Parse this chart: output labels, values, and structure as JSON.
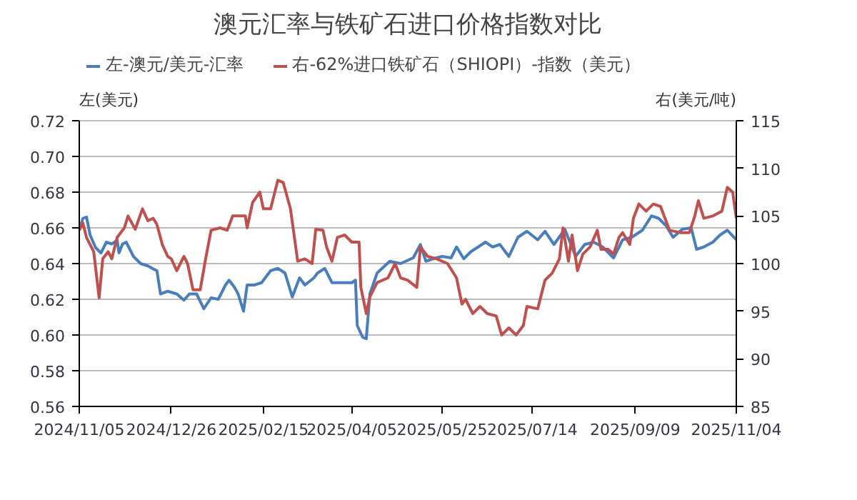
{
  "chart_data": {
    "type": "line",
    "title": "澳元汇率与铁矿石进口价格指数对比",
    "ylabel": "左(美元)",
    "y2label": "右(美元/吨)",
    "legend": "top left",
    "grid": "y",
    "marker": "none",
    "line_style": "solid",
    "xlim": [
      "2024-11-05",
      "2025-11-04"
    ],
    "xticks": [
      {
        "value": "2024-11-05",
        "label": "2024/11/05"
      },
      {
        "value": "2024-12-26",
        "label": "2024/12/26"
      },
      {
        "value": "2025-02-15",
        "label": "2025/02/15"
      },
      {
        "value": "2025-04-05",
        "label": "2025/04/05"
      },
      {
        "value": "2025-05-25",
        "label": "2025/05/25"
      },
      {
        "value": "2025-07-14",
        "label": "2025/07/14"
      },
      {
        "value": "2025-09-09",
        "label": "2025/09/09"
      },
      {
        "value": "2025-11-04",
        "label": "2025/11/04"
      }
    ],
    "ylim": [
      0.56,
      0.72
    ],
    "yticks": [
      {
        "value": 0.56,
        "label": "0.56"
      },
      {
        "value": 0.58,
        "label": "0.58"
      },
      {
        "value": 0.6,
        "label": "0.60"
      },
      {
        "value": 0.62,
        "label": "0.62"
      },
      {
        "value": 0.64,
        "label": "0.64"
      },
      {
        "value": 0.66,
        "label": "0.66"
      },
      {
        "value": 0.68,
        "label": "0.68"
      },
      {
        "value": 0.7,
        "label": "0.70"
      },
      {
        "value": 0.72,
        "label": "0.72"
      }
    ],
    "y2lim": [
      85,
      115
    ],
    "y2ticks": [
      85,
      90,
      95,
      100,
      105,
      110,
      115
    ],
    "series": [
      {
        "name": "左-澳元/美元-汇率",
        "color": "#4a7ebb",
        "x": [
          "2024-11-05",
          "2024-11-07",
          "2024-11-09",
          "2024-11-11",
          "2024-11-14",
          "2024-11-17",
          "2024-11-20",
          "2024-11-23",
          "2024-11-26",
          "2024-11-27",
          "2024-11-29",
          "2024-12-01",
          "2024-12-05",
          "2024-12-09",
          "2024-12-13",
          "2024-12-16",
          "2024-12-18",
          "2024-12-20",
          "2024-12-24",
          "2024-12-29",
          "2025-01-02",
          "2025-01-05",
          "2025-01-09",
          "2025-01-13",
          "2025-01-17",
          "2025-01-21",
          "2025-01-25",
          "2025-01-27",
          "2025-01-30",
          "2025-02-01",
          "2025-02-04",
          "2025-02-06",
          "2025-02-10",
          "2025-02-14",
          "2025-02-19",
          "2025-02-23",
          "2025-02-27",
          "2025-03-03",
          "2025-03-07",
          "2025-03-10",
          "2025-03-15",
          "2025-03-17",
          "2025-03-21",
          "2025-03-25",
          "2025-03-31",
          "2025-04-05",
          "2025-04-07",
          "2025-04-08",
          "2025-04-11",
          "2025-04-13",
          "2025-04-15",
          "2025-04-19",
          "2025-04-26",
          "2025-05-02",
          "2025-05-09",
          "2025-05-13",
          "2025-05-16",
          "2025-05-20",
          "2025-05-25",
          "2025-05-30",
          "2025-06-02",
          "2025-06-06",
          "2025-06-10",
          "2025-06-14",
          "2025-06-18",
          "2025-06-22",
          "2025-06-26",
          "2025-07-01",
          "2025-07-06",
          "2025-07-11",
          "2025-07-17",
          "2025-07-21",
          "2025-07-26",
          "2025-08-01",
          "2025-08-07",
          "2025-08-12",
          "2025-08-17",
          "2025-08-22",
          "2025-08-28",
          "2025-09-02",
          "2025-09-07",
          "2025-09-13",
          "2025-09-18",
          "2025-09-22",
          "2025-09-26",
          "2025-09-30",
          "2025-10-05",
          "2025-10-10",
          "2025-10-13",
          "2025-10-17",
          "2025-10-22",
          "2025-10-26",
          "2025-10-30",
          "2025-11-04"
        ],
        "values": [
          0.6587,
          0.6653,
          0.6661,
          0.656,
          0.649,
          0.6459,
          0.652,
          0.651,
          0.653,
          0.646,
          0.651,
          0.652,
          0.644,
          0.64,
          0.6387,
          0.637,
          0.636,
          0.623,
          0.6245,
          0.623,
          0.6195,
          0.623,
          0.623,
          0.6147,
          0.6208,
          0.62,
          0.628,
          0.6307,
          0.6267,
          0.623,
          0.6133,
          0.628,
          0.628,
          0.6293,
          0.636,
          0.6373,
          0.6347,
          0.6213,
          0.632,
          0.628,
          0.632,
          0.6347,
          0.6373,
          0.6293,
          0.6293,
          0.6293,
          0.6307,
          0.6053,
          0.5987,
          0.5979,
          0.623,
          0.6347,
          0.6413,
          0.64,
          0.6432,
          0.6507,
          0.6413,
          0.6427,
          0.644,
          0.6432,
          0.6493,
          0.6427,
          0.6467,
          0.6493,
          0.652,
          0.6493,
          0.6507,
          0.644,
          0.6547,
          0.6581,
          0.6533,
          0.6581,
          0.6507,
          0.6592,
          0.644,
          0.6507,
          0.652,
          0.6493,
          0.6432,
          0.6533,
          0.6547,
          0.6587,
          0.6667,
          0.6653,
          0.6613,
          0.6547,
          0.6592,
          0.66,
          0.648,
          0.6493,
          0.652,
          0.656,
          0.6587,
          0.6533
        ]
      },
      {
        "name": "右-62%进口铁矿石（SHIOPI）-指数（美元）",
        "color": "#c0504d",
        "axis": "y2",
        "x": [
          "2024-11-05",
          "2024-11-07",
          "2024-11-09",
          "2024-11-13",
          "2024-11-16",
          "2024-11-18",
          "2024-11-21",
          "2024-11-23",
          "2024-11-26",
          "2024-11-30",
          "2024-12-02",
          "2024-12-06",
          "2024-12-10",
          "2024-12-13",
          "2024-12-16",
          "2024-12-18",
          "2024-12-21",
          "2024-12-24",
          "2024-12-26",
          "2024-12-29",
          "2025-01-02",
          "2025-01-04",
          "2025-01-07",
          "2025-01-11",
          "2025-01-14",
          "2025-01-17",
          "2025-01-22",
          "2025-01-26",
          "2025-01-29",
          "2025-02-05",
          "2025-02-06",
          "2025-02-09",
          "2025-02-13",
          "2025-02-15",
          "2025-02-19",
          "2025-02-23",
          "2025-02-26",
          "2025-03-02",
          "2025-03-06",
          "2025-03-10",
          "2025-03-14",
          "2025-03-16",
          "2025-03-20",
          "2025-03-22",
          "2025-03-25",
          "2025-03-28",
          "2025-04-01",
          "2025-04-05",
          "2025-04-09",
          "2025-04-10",
          "2025-04-13",
          "2025-04-15",
          "2025-04-19",
          "2025-04-25",
          "2025-04-29",
          "2025-05-02",
          "2025-05-06",
          "2025-05-11",
          "2025-05-13",
          "2025-05-17",
          "2025-05-22",
          "2025-05-28",
          "2025-06-02",
          "2025-06-05",
          "2025-06-07",
          "2025-06-11",
          "2025-06-15",
          "2025-06-19",
          "2025-06-24",
          "2025-06-27",
          "2025-07-01",
          "2025-07-05",
          "2025-07-09",
          "2025-07-11",
          "2025-07-17",
          "2025-07-21",
          "2025-07-25",
          "2025-07-29",
          "2025-07-31",
          "2025-08-03",
          "2025-08-05",
          "2025-08-08",
          "2025-08-11",
          "2025-08-15",
          "2025-08-19",
          "2025-08-21",
          "2025-08-25",
          "2025-08-28",
          "2025-08-31",
          "2025-09-02",
          "2025-09-06",
          "2025-09-08",
          "2025-09-11",
          "2025-09-15",
          "2025-09-19",
          "2025-09-23",
          "2025-09-28",
          "2025-10-04",
          "2025-10-09",
          "2025-10-12",
          "2025-10-14",
          "2025-10-17",
          "2025-10-22",
          "2025-10-27",
          "2025-10-30",
          "2025-11-02",
          "2025-11-04"
        ],
        "values": [
          103.5,
          104.25,
          102.75,
          101.25,
          96.4,
          100.5,
          101.25,
          100.5,
          102.75,
          103.75,
          105,
          103.6,
          105.75,
          104.5,
          104.75,
          104.1,
          102,
          100.75,
          100.5,
          99.25,
          100.75,
          100,
          97.25,
          97.25,
          100.5,
          103.5,
          103.75,
          103.5,
          105,
          105,
          103.75,
          106.4,
          107.5,
          105.75,
          105.75,
          108.75,
          108.5,
          105.75,
          100.25,
          100.5,
          100,
          103.6,
          103.5,
          101.75,
          100.25,
          102.75,
          103,
          102.25,
          102.25,
          97.5,
          94.75,
          96.5,
          98,
          98.5,
          100,
          98.5,
          98.25,
          97.5,
          101.75,
          100.75,
          100.5,
          100,
          98.5,
          95.75,
          96.25,
          94.75,
          95.5,
          94.75,
          94.5,
          92.5,
          93.25,
          92.5,
          93.5,
          95.5,
          95.25,
          98.25,
          99,
          100.5,
          103.75,
          100.25,
          103,
          99.25,
          101,
          101.75,
          103.5,
          101.5,
          101.5,
          101,
          102.75,
          103.25,
          102,
          104.75,
          106.25,
          105.5,
          106.25,
          106,
          103.5,
          103.25,
          103.25,
          105,
          106.6,
          104.75,
          105,
          105.5,
          108,
          107.5,
          104.75
        ]
      }
    ]
  }
}
